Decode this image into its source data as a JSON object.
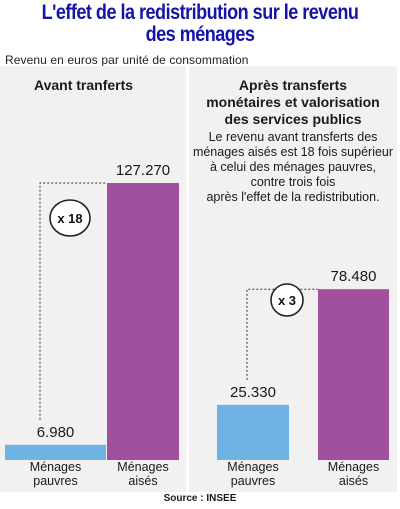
{
  "header": {
    "title_line1": "L'effet de la redistribution sur le revenu",
    "title_line2": "des ménages",
    "subtitle": "Revenu en euros par unité de consommation"
  },
  "colors": {
    "title": "#1414a8",
    "pauvres": "#6fb2e4",
    "aises": "#a0509c",
    "panel": "#f1f1f1"
  },
  "chart_data": [
    {
      "type": "bar",
      "title": "Avant tranferts",
      "categories": [
        "Ménages pauvres",
        "Ménages aisés"
      ],
      "values": [
        6980,
        127270
      ],
      "value_labels": [
        "6.980",
        "127.270"
      ],
      "ratio_label": "x 18",
      "ylim": [
        0,
        130000
      ]
    },
    {
      "type": "bar",
      "title": "Après transferts monétaires et valorisation des services publics",
      "categories": [
        "Ménages pauvres",
        "Ménages aisés"
      ],
      "values": [
        25330,
        78480
      ],
      "value_labels": [
        "25.330",
        "78.480"
      ],
      "ratio_label": "x 3",
      "ylim": [
        0,
        130000
      ]
    }
  ],
  "panels": {
    "left_title": "Avant tranferts",
    "right_title_line1": "Après transferts",
    "right_title_line2": "monétaires et valorisation",
    "right_title_line3": "des services publics",
    "note_line1": "Le revenu avant transferts des",
    "note_line2": "ménages aisés est 18 fois supérieur",
    "note_line3": "à celui des ménages pauvres,",
    "note_line4": "contre trois fois",
    "note_line5": "après l'effet de la redistribution."
  },
  "labels": {
    "pauvres_line1": "Ménages",
    "pauvres_line2": "pauvres",
    "aises_line1": "Ménages",
    "aises_line2": "aisés"
  },
  "footer": {
    "source": "Source : INSEE"
  }
}
